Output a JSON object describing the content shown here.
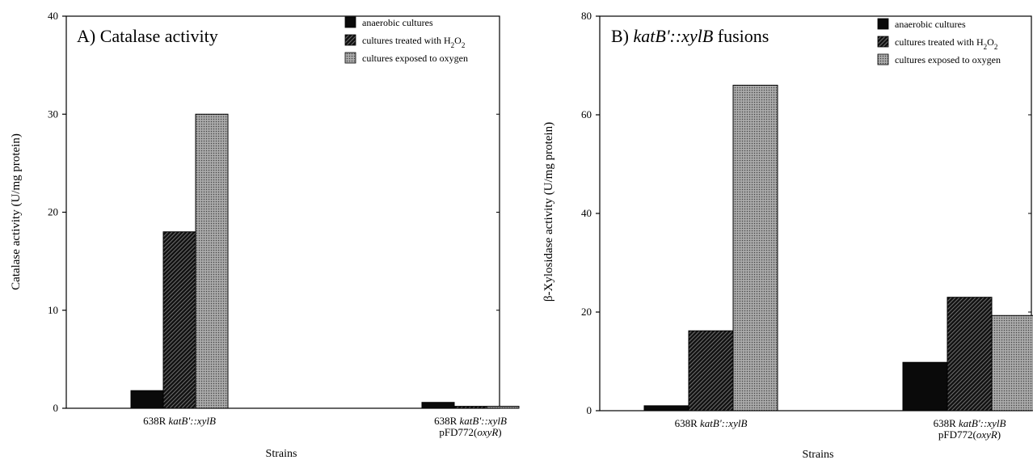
{
  "chart_data": [
    {
      "type": "bar",
      "title": "A) Catalase activity",
      "xlabel": "Strains",
      "ylabel": "Catalase activity (U/mg protein)",
      "ylim": [
        0,
        40
      ],
      "yticks": [
        0,
        10,
        20,
        30,
        40
      ],
      "grid": false,
      "legend_position": "top-right",
      "categories": [
        {
          "lines": [
            [
              {
                "t": "638R "
              },
              {
                "t": "katB'::xylB",
                "i": true
              }
            ]
          ]
        },
        {
          "lines": [
            [
              {
                "t": "638R "
              },
              {
                "t": "katB'::xylB",
                "i": true
              }
            ],
            [
              {
                "t": "pFD772("
              },
              {
                "t": "oxyR",
                "i": true
              },
              {
                "t": ")"
              }
            ]
          ]
        }
      ],
      "series": [
        {
          "name": [
            {
              "t": "anaerobic cultures"
            }
          ],
          "pattern": "solid",
          "values": [
            1.8,
            0.6
          ]
        },
        {
          "name": [
            {
              "t": "cultures treated with H"
            },
            {
              "t": "2",
              "sub": true
            },
            {
              "t": "O"
            },
            {
              "t": "2",
              "sub": true
            }
          ],
          "pattern": "hatch",
          "values": [
            18,
            0.2
          ]
        },
        {
          "name": [
            {
              "t": "cultures exposed to oxygen"
            }
          ],
          "pattern": "dots",
          "values": [
            30,
            0.2
          ]
        }
      ]
    },
    {
      "type": "bar",
      "title": [
        {
          "t": "B)  "
        },
        {
          "t": "katB'::xylB",
          "i": true
        },
        {
          "t": " fusions"
        }
      ],
      "xlabel": "Strains",
      "ylabel": "β-Xylosidase activity (U/mg protein)",
      "ylim": [
        0,
        80
      ],
      "yticks": [
        0,
        20,
        40,
        60,
        80
      ],
      "grid": false,
      "legend_position": "top-right",
      "categories": [
        {
          "lines": [
            [
              {
                "t": "638R "
              },
              {
                "t": "katB'::xylB",
                "i": true
              }
            ]
          ]
        },
        {
          "lines": [
            [
              {
                "t": "638R "
              },
              {
                "t": "katB'::xylB",
                "i": true
              }
            ],
            [
              {
                "t": "pFD772("
              },
              {
                "t": "oxyR",
                "i": true
              },
              {
                "t": ")"
              }
            ]
          ]
        }
      ],
      "series": [
        {
          "name": [
            {
              "t": "anaerobic cultures"
            }
          ],
          "pattern": "solid",
          "values": [
            1,
            9.8
          ]
        },
        {
          "name": [
            {
              "t": "cultures treated with H"
            },
            {
              "t": "2",
              "sub": true
            },
            {
              "t": "O"
            },
            {
              "t": "2",
              "sub": true
            }
          ],
          "pattern": "hatch",
          "values": [
            16.2,
            23
          ]
        },
        {
          "name": [
            {
              "t": "cultures exposed to oxygen"
            }
          ],
          "pattern": "dots",
          "values": [
            66,
            19.3
          ]
        }
      ]
    }
  ]
}
